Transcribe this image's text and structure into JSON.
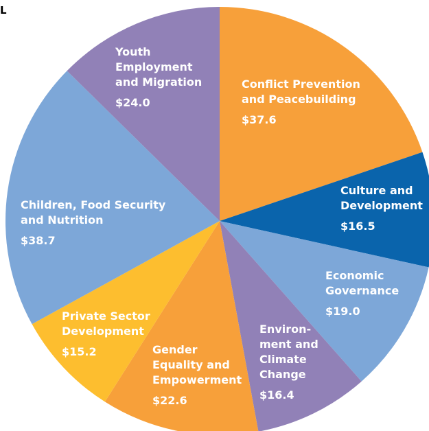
{
  "corner_text": "L",
  "chart_data": {
    "type": "pie",
    "title": "",
    "slices": [
      {
        "name": "Conflict Prevention and Peacebuilding",
        "label_lines": [
          "Conflict Prevention",
          "and Peacebuilding"
        ],
        "value_label": "$37.6",
        "value": 37.6,
        "color": "#F7A03A"
      },
      {
        "name": "Culture and Development",
        "label_lines": [
          "Culture and",
          "Development"
        ],
        "value_label": "$16.5",
        "value": 16.5,
        "color": "#0A64AC"
      },
      {
        "name": "Economic Governance",
        "label_lines": [
          "Economic",
          "Governance"
        ],
        "value_label": "$19.0",
        "value": 19.0,
        "color": "#7DA7D8"
      },
      {
        "name": "Environment and Climate Change",
        "label_lines": [
          "Environ-",
          "ment and",
          "Climate",
          "Change"
        ],
        "value_label": "$16.4",
        "value": 16.4,
        "color": "#9181B7"
      },
      {
        "name": "Gender Equality and Empowerment",
        "label_lines": [
          "Gender",
          "Equality and",
          "Empowerment"
        ],
        "value_label": "$22.6",
        "value": 22.6,
        "color": "#F7A03A"
      },
      {
        "name": "Private Sector Development",
        "label_lines": [
          "Private Sector",
          "Development"
        ],
        "value_label": "$15.2",
        "value": 15.2,
        "color": "#FDBE2F"
      },
      {
        "name": "Children, Food Security and Nutrition",
        "label_lines": [
          "Children, Food Security",
          "and Nutrition"
        ],
        "value_label": "$38.7",
        "value": 38.7,
        "color": "#7DA7D8"
      },
      {
        "name": "Youth Employment and Migration",
        "label_lines": [
          "Youth",
          "Employment",
          "and Migration"
        ],
        "value_label": "$24.0",
        "value": 24.0,
        "color": "#9181B7"
      }
    ]
  }
}
